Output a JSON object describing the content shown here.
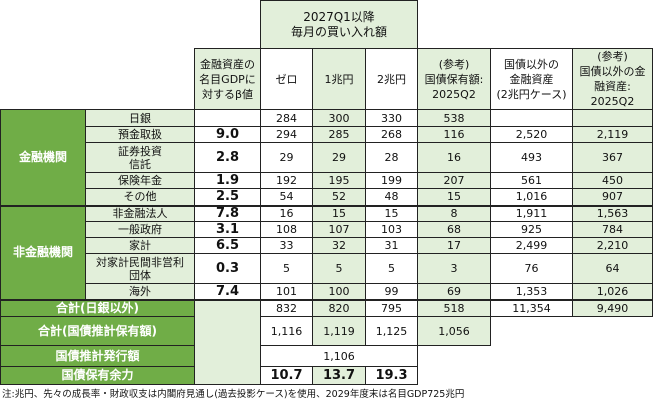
{
  "header": {
    "period_title": "2027Q1以降\n毎月の買い入れ額",
    "beta": "金融資産の\n名目GDPに\n対するβ値",
    "zero": "ゼロ",
    "one": "1兆円",
    "two": "2兆円",
    "ref_holdings": "(参考)\n国債保有額:\n2025Q2",
    "non_jgb": "国債以外の\n金融資産\n(2兆円ケース)",
    "ref_non_jgb": "(参考)\n国債以外の金\n融資産:\n2025Q2"
  },
  "groups": {
    "financial": "金融機関",
    "non_financial": "非金融機関"
  },
  "rows": [
    {
      "label": "日銀",
      "beta": "",
      "zero": "284",
      "one": "300",
      "two": "330",
      "ref": "538",
      "non_jgb": "",
      "ref_non_jgb": ""
    },
    {
      "label": "預金取扱",
      "beta": "9.0",
      "zero": "294",
      "one": "285",
      "two": "268",
      "ref": "116",
      "non_jgb": "2,520",
      "ref_non_jgb": "2,119"
    },
    {
      "label": "証券投資\n信託",
      "beta": "2.8",
      "zero": "29",
      "one": "29",
      "two": "28",
      "ref": "16",
      "non_jgb": "493",
      "ref_non_jgb": "367"
    },
    {
      "label": "保険年金",
      "beta": "1.9",
      "zero": "192",
      "one": "195",
      "two": "199",
      "ref": "207",
      "non_jgb": "561",
      "ref_non_jgb": "450"
    },
    {
      "label": "その他",
      "beta": "2.5",
      "zero": "54",
      "one": "52",
      "two": "48",
      "ref": "15",
      "non_jgb": "1,016",
      "ref_non_jgb": "907"
    },
    {
      "label": "非金融法人",
      "beta": "7.8",
      "zero": "16",
      "one": "15",
      "two": "15",
      "ref": "8",
      "non_jgb": "1,911",
      "ref_non_jgb": "1,563"
    },
    {
      "label": "一般政府",
      "beta": "3.1",
      "zero": "108",
      "one": "107",
      "two": "103",
      "ref": "68",
      "non_jgb": "925",
      "ref_non_jgb": "784"
    },
    {
      "label": "家計",
      "beta": "6.5",
      "zero": "33",
      "one": "32",
      "two": "31",
      "ref": "17",
      "non_jgb": "2,499",
      "ref_non_jgb": "2,210"
    },
    {
      "label": "対家計民間非営利\n団体",
      "beta": "0.3",
      "zero": "5",
      "one": "5",
      "two": "5",
      "ref": "3",
      "non_jgb": "76",
      "ref_non_jgb": "64"
    },
    {
      "label": "海外",
      "beta": "7.4",
      "zero": "101",
      "one": "100",
      "two": "99",
      "ref": "69",
      "non_jgb": "1,353",
      "ref_non_jgb": "1,026"
    }
  ],
  "totals": {
    "ex_boj": {
      "label": "合計(日銀以外)",
      "zero": "832",
      "one": "820",
      "two": "795",
      "ref": "518",
      "non_jgb": "11,354",
      "ref_non_jgb": "9,490"
    },
    "est_holdings": {
      "label": "合計(国債推計保有額)",
      "zero": "1,116",
      "one": "1,119",
      "two": "1,125",
      "ref": "1,056"
    },
    "issuance": {
      "label": "国債推計発行額",
      "value": "1,106"
    },
    "capacity": {
      "label": "国債保有余力",
      "zero": "10.7",
      "one": "13.7",
      "two": "19.3"
    }
  },
  "note": "注:兆円、先々の成長率・財政収支は内閣府見通し(過去投影ケース)を使用、2029年度末は名目GDP725兆円"
}
